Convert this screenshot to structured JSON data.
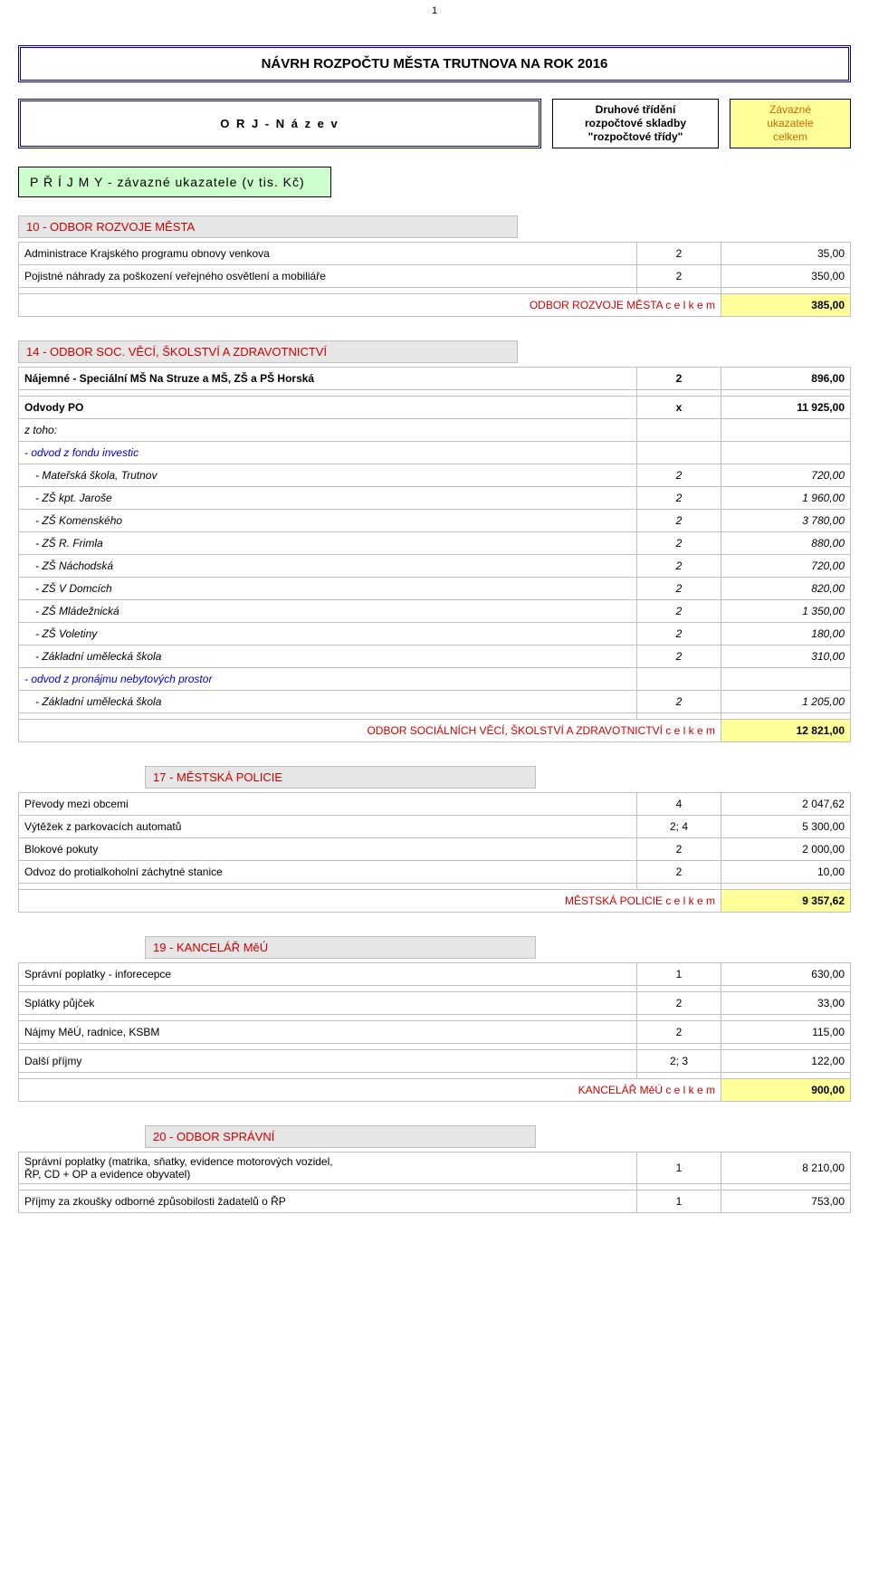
{
  "page_number": "1",
  "main_title": "NÁVRH  ROZPOČTU  MĚSTA  TRUTNOVA  NA  ROK  2016",
  "header": {
    "orj": "O R J  -  N á z e v",
    "druh_l1": "Druhové třídění",
    "druh_l2": "rozpočtové skladby",
    "druh_l3": "\"rozpočtové třídy\"",
    "zav_l1": "Závazné",
    "zav_l2": "ukazatele",
    "zav_l3": "celkem"
  },
  "prijmy_title": "P Ř Í J M Y   -   závazné ukazatele  (v tis. Kč)",
  "s10": {
    "title": "10 - ODBOR  ROZVOJE  MĚSTA",
    "rows": [
      {
        "label": "Administrace Krajského programu obnovy venkova",
        "mid": "2",
        "val": "35,00"
      },
      {
        "label": "Pojistné náhrady za poškození veřejného osvětlení a mobiliáře",
        "mid": "2",
        "val": "350,00"
      }
    ],
    "total_label": "ODBOR  ROZVOJE  MĚSTA    c e l k e m",
    "total_val": "385,00"
  },
  "s14": {
    "title": "14 - ODBOR  SOC.  VĚCÍ,  ŠKOLSTVÍ  A  ZDRAVOTNICTVÍ",
    "row_najemne": {
      "label": "Nájemné - Speciální MŠ Na Struze a MŠ, ZŠ a PŠ Horská",
      "mid": "2",
      "val": "896,00"
    },
    "row_odvody": {
      "label": "Odvody PO",
      "mid": "x",
      "val": "11 925,00"
    },
    "row_ztoho": "z toho:",
    "row_fond": " - odvod z fondu investic",
    "fund_rows": [
      {
        "label": "   - Mateřská škola, Trutnov",
        "mid": "2",
        "val": "720,00"
      },
      {
        "label": "   - ZŠ kpt. Jaroše",
        "mid": "2",
        "val": "1 960,00"
      },
      {
        "label": "   - ZŠ Komenského",
        "mid": "2",
        "val": "3 780,00"
      },
      {
        "label": "   - ZŠ R. Frimla",
        "mid": "2",
        "val": "880,00"
      },
      {
        "label": "   - ZŠ Náchodská",
        "mid": "2",
        "val": "720,00"
      },
      {
        "label": "   - ZŠ V Domcích",
        "mid": "2",
        "val": "820,00"
      },
      {
        "label": "   - ZŠ Mládežnická",
        "mid": "2",
        "val": "1 350,00"
      },
      {
        "label": "   - ZŠ Voletiny",
        "mid": "2",
        "val": "180,00"
      },
      {
        "label": "   - Základní umělecká škola",
        "mid": "2",
        "val": "310,00"
      }
    ],
    "row_pronajem": " - odvod z pronájmu nebytových prostor",
    "pronajem_rows": [
      {
        "label": "   - Základní umělecká škola",
        "mid": "2",
        "val": "1 205,00"
      }
    ],
    "total_label": "ODBOR  SOCIÁLNÍCH  VĚCÍ,  ŠKOLSTVÍ  A  ZDRAVOTNICTVÍ    c e l k e m",
    "total_val": "12 821,00"
  },
  "s17": {
    "title": "17 - MĚSTSKÁ  POLICIE",
    "rows": [
      {
        "label": "Převody mezi obcemi",
        "mid": "4",
        "val": "2 047,62"
      },
      {
        "label": "Výtěžek z parkovacích automatů",
        "mid": "2; 4",
        "val": "5 300,00"
      },
      {
        "label": "Blokové pokuty",
        "mid": "2",
        "val": "2 000,00"
      },
      {
        "label": "Odvoz do protialkoholní záchytné stanice",
        "mid": "2",
        "val": "10,00"
      }
    ],
    "total_label": "MĚSTSKÁ  POLICIE    c e l k e m",
    "total_val": "9 357,62"
  },
  "s19": {
    "title": "19 - KANCELÁŘ  MěÚ",
    "rows": [
      {
        "label": "Správní poplatky - inforecepce",
        "mid": "1",
        "val": "630,00"
      },
      {
        "label": "Splátky půjček",
        "mid": "2",
        "val": "33,00"
      },
      {
        "label": "Nájmy MěÚ, radnice, KSBM",
        "mid": "2",
        "val": "115,00"
      },
      {
        "label": "Další příjmy",
        "mid": "2; 3",
        "val": "122,00"
      }
    ],
    "total_label": "KANCELÁŘ  MěÚ    c e l k e m",
    "total_val": "900,00"
  },
  "s20": {
    "title": "20 - ODBOR  SPRÁVNÍ",
    "row1_l1": "Správní poplatky (matrika, sňatky, evidence motorových vozidel,",
    "row1_l2": "ŘP, CD + OP a evidence obyvatel)",
    "row1_mid": "1",
    "row1_val": "8 210,00",
    "row2": {
      "label": "Příjmy za zkoušky odborné způsobilosti žadatelů o ŘP",
      "mid": "1",
      "val": "753,00"
    }
  }
}
